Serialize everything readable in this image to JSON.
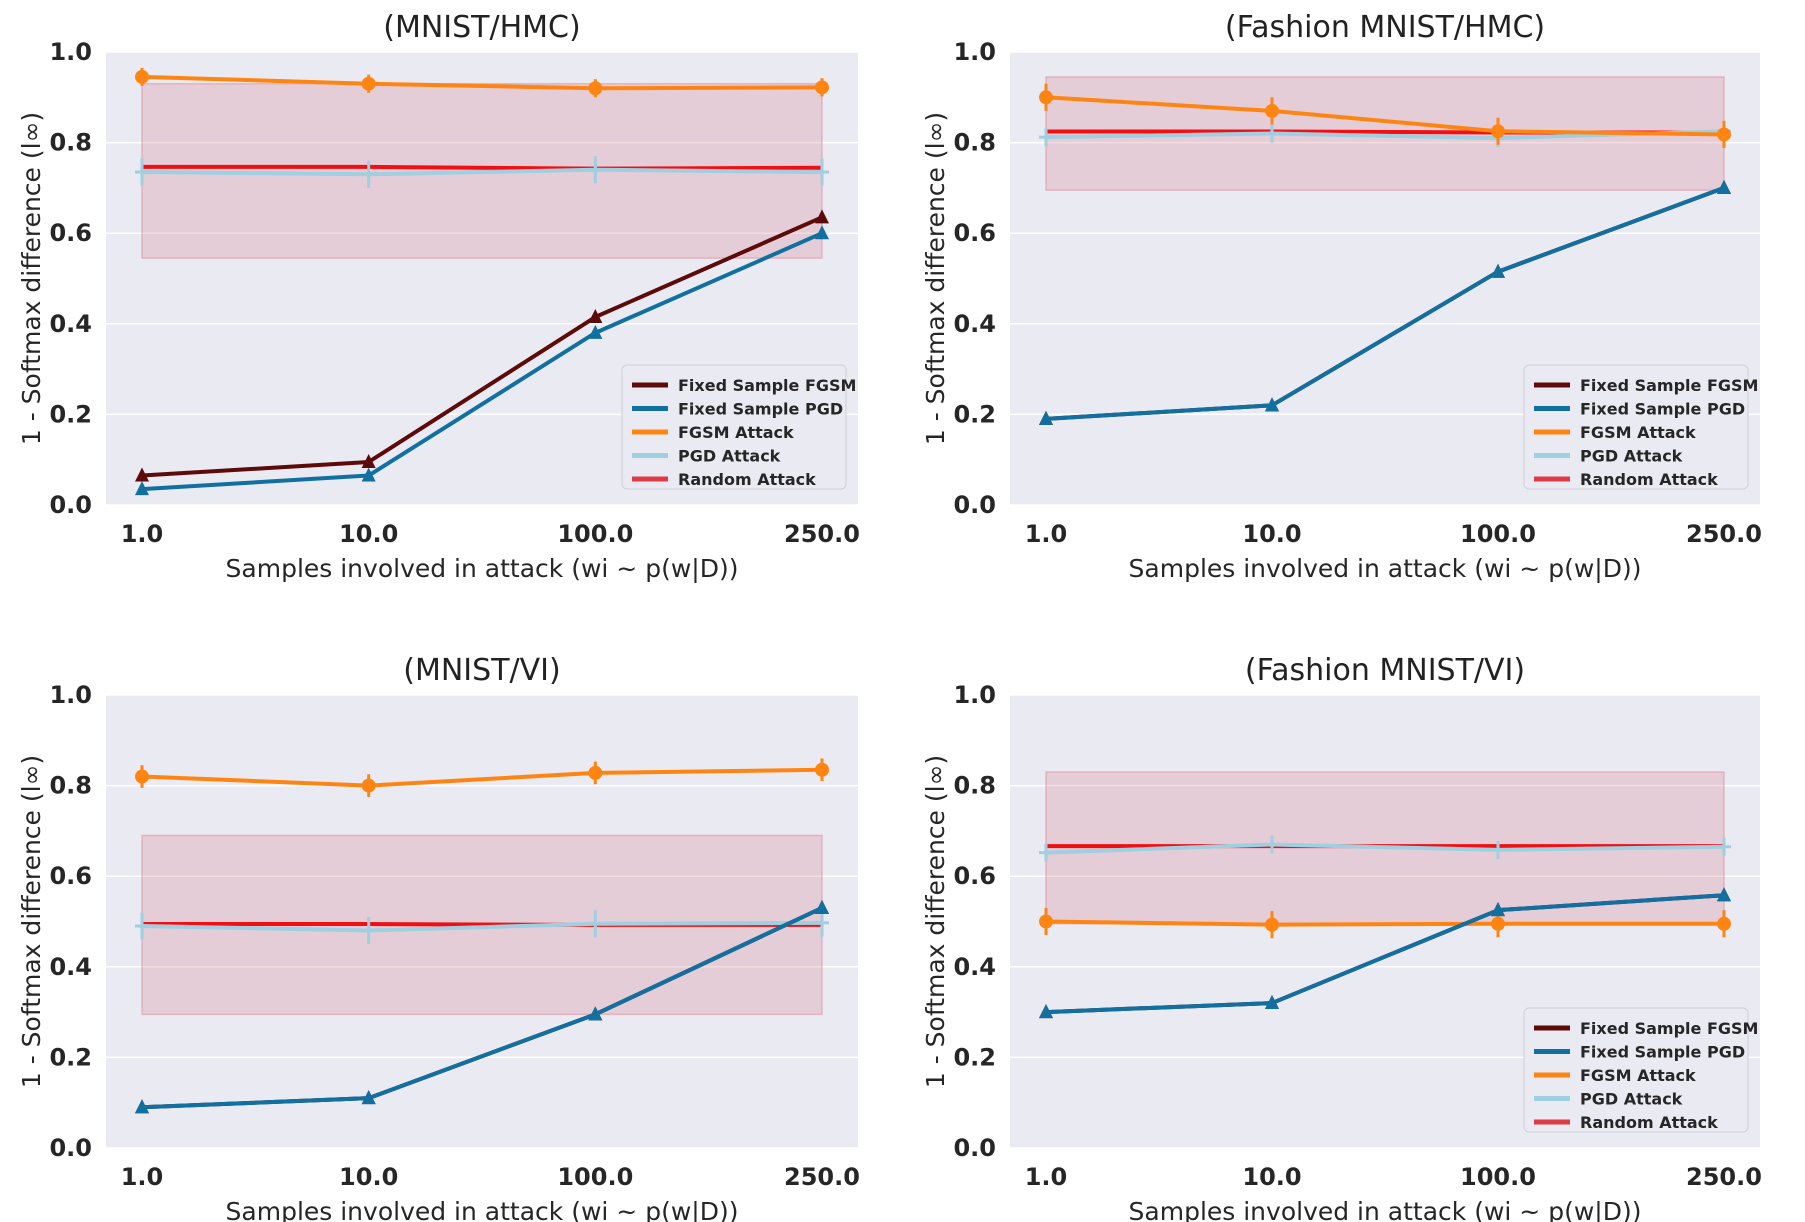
{
  "colors": {
    "plot_bg": "#eaeaf2",
    "grid": "#ffffff",
    "band": "#dc8c9a",
    "fixed_fgsm": "#5c0a0a",
    "fixed_pgd": "#1170a0",
    "fgsm": "#ff8512",
    "pgd": "#9fcfe0",
    "random": "#dd3b45",
    "random_line": "#f20f12"
  },
  "shared": {
    "ylabel": "1 - Softmax difference (l∞)",
    "xlabel": "Samples involved in attack (wi ~ p(w|D))",
    "legend": [
      "Fixed Sample FGSM",
      "Fixed Sample PGD",
      "FGSM Attack",
      "PGD Attack",
      "Random Attack"
    ],
    "x_ticks": [
      "1.0",
      "10.0",
      "100.0",
      "250.0"
    ],
    "y_ticks": [
      "0.0",
      "0.2",
      "0.4",
      "0.6",
      "0.8",
      "1.0"
    ]
  },
  "chart_data": [
    {
      "type": "line",
      "title": "(MNIST/HMC)",
      "categories": [
        "1.0",
        "10.0",
        "100.0",
        "250.0"
      ],
      "ylim": [
        0,
        1
      ],
      "grid": true,
      "legend_position": "bottom-right",
      "series": [
        {
          "name": "Fixed Sample FGSM",
          "values": [
            0.065,
            0.095,
            0.415,
            0.635
          ]
        },
        {
          "name": "Fixed Sample PGD",
          "values": [
            0.035,
            0.065,
            0.38,
            0.6
          ]
        },
        {
          "name": "FGSM Attack",
          "values": [
            0.945,
            0.93,
            0.92,
            0.922
          ],
          "err": 0.02
        },
        {
          "name": "PGD Attack",
          "values": [
            0.735,
            0.73,
            0.74,
            0.735
          ],
          "err": 0.03
        },
        {
          "name": "Random Attack",
          "values": [
            0.742,
            0.742,
            0.738,
            0.74
          ],
          "band": [
            0.545,
            0.93
          ]
        }
      ]
    },
    {
      "type": "line",
      "title": "(Fashion MNIST/HMC)",
      "categories": [
        "1.0",
        "10.0",
        "100.0",
        "250.0"
      ],
      "ylim": [
        0,
        1
      ],
      "grid": true,
      "legend_position": "bottom-right",
      "series": [
        {
          "name": "Fixed Sample FGSM",
          "values": [
            0.19,
            0.22,
            0.515,
            0.7
          ]
        },
        {
          "name": "Fixed Sample PGD",
          "values": [
            0.19,
            0.22,
            0.515,
            0.7
          ]
        },
        {
          "name": "FGSM Attack",
          "values": [
            0.9,
            0.87,
            0.825,
            0.818
          ],
          "err": 0.03
        },
        {
          "name": "PGD Attack",
          "values": [
            0.812,
            0.82,
            0.81,
            0.825
          ],
          "err": 0.02
        },
        {
          "name": "Random Attack",
          "values": [
            0.82,
            0.82,
            0.818,
            0.818
          ],
          "band": [
            0.695,
            0.945
          ]
        }
      ]
    },
    {
      "type": "line",
      "title": "(MNIST/VI)",
      "categories": [
        "1.0",
        "10.0",
        "100.0",
        "250.0"
      ],
      "ylim": [
        0,
        1
      ],
      "grid": true,
      "legend_position": "none",
      "series": [
        {
          "name": "Fixed Sample FGSM",
          "values": [
            0.09,
            0.11,
            0.295,
            0.53
          ]
        },
        {
          "name": "Fixed Sample PGD",
          "values": [
            0.09,
            0.11,
            0.295,
            0.53
          ]
        },
        {
          "name": "FGSM Attack",
          "values": [
            0.82,
            0.8,
            0.828,
            0.835
          ],
          "err": 0.025
        },
        {
          "name": "PGD Attack",
          "values": [
            0.49,
            0.48,
            0.495,
            0.497
          ],
          "err": 0.03
        },
        {
          "name": "Random Attack",
          "values": [
            0.49,
            0.49,
            0.488,
            0.488
          ],
          "band": [
            0.295,
            0.69
          ]
        }
      ]
    },
    {
      "type": "line",
      "title": "(Fashion MNIST/VI)",
      "categories": [
        "1.0",
        "10.0",
        "100.0",
        "250.0"
      ],
      "ylim": [
        0,
        1
      ],
      "grid": true,
      "legend_position": "bottom-right",
      "series": [
        {
          "name": "Fixed Sample FGSM",
          "values": [
            0.3,
            0.32,
            0.525,
            0.558
          ]
        },
        {
          "name": "Fixed Sample PGD",
          "values": [
            0.3,
            0.32,
            0.525,
            0.558
          ]
        },
        {
          "name": "FGSM Attack",
          "values": [
            0.5,
            0.493,
            0.495,
            0.495
          ],
          "err": 0.03
        },
        {
          "name": "PGD Attack",
          "values": [
            0.652,
            0.67,
            0.658,
            0.665
          ],
          "err": 0.02
        },
        {
          "name": "Random Attack",
          "values": [
            0.662,
            0.662,
            0.662,
            0.662
          ],
          "band": [
            0.495,
            0.83
          ]
        }
      ]
    }
  ]
}
